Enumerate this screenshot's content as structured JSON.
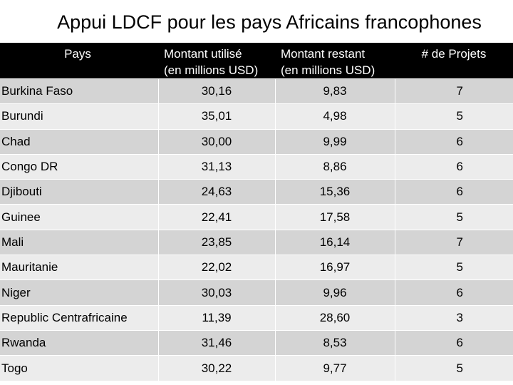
{
  "title": "Appui LDCF pour les pays Africains francophones",
  "table": {
    "headers": {
      "country": "Pays",
      "used_line1": "Montant utilisé",
      "used_line2": "(en millions USD)",
      "remaining_line1": "Montant restant",
      "remaining_line2": "(en millions USD)",
      "projects": "# de Projets"
    },
    "rows": [
      {
        "country": "Burkina Faso",
        "used": "30,16",
        "remaining": "9,83",
        "projects": "7"
      },
      {
        "country": "Burundi",
        "used": "35,01",
        "remaining": "4,98",
        "projects": "5"
      },
      {
        "country": "Chad",
        "used": "30,00",
        "remaining": "9,99",
        "projects": "6"
      },
      {
        "country": "Congo DR",
        "used": "31,13",
        "remaining": "8,86",
        "projects": "6"
      },
      {
        "country": "Djibouti",
        "used": "24,63",
        "remaining": "15,36",
        "projects": "6"
      },
      {
        "country": "Guinee",
        "used": "22,41",
        "remaining": "17,58",
        "projects": "5"
      },
      {
        "country": "Mali",
        "used": "23,85",
        "remaining": "16,14",
        "projects": "7"
      },
      {
        "country": "Mauritanie",
        "used": "22,02",
        "remaining": "16,97",
        "projects": "5"
      },
      {
        "country": "Niger",
        "used": "30,03",
        "remaining": "9,96",
        "projects": "6"
      },
      {
        "country": "Republic Centrafricaine",
        "used": "11,39",
        "remaining": "28,60",
        "projects": "3"
      },
      {
        "country": "Rwanda",
        "used": "31,46",
        "remaining": "8,53",
        "projects": "6"
      },
      {
        "country": "Togo",
        "used": "30,22",
        "remaining": "9,77",
        "projects": "5"
      }
    ]
  }
}
